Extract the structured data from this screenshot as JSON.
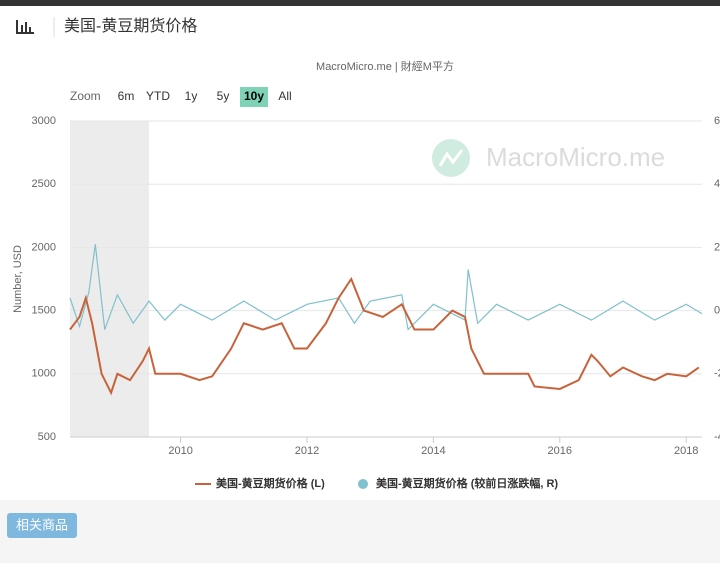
{
  "header": {
    "title": "美国-黄豆期货价格"
  },
  "button": "相关商品",
  "watermark": "MacroMicro.me",
  "chart_data": {
    "type": "line",
    "subtitle": "MacroMicro.me | 財經M平方",
    "zoom": {
      "label": "Zoom",
      "options": [
        "6m",
        "YTD",
        "1y",
        "5y",
        "10y",
        "All"
      ],
      "selected": 4
    },
    "y_label": "Number, USD",
    "xlim": [
      2008.25,
      2018.25
    ],
    "xticks": [
      2010,
      2012,
      2014,
      2016,
      2018
    ],
    "ylim": [
      500,
      3000
    ],
    "yticks": [
      500,
      1000,
      1500,
      2000,
      2500,
      3000
    ],
    "y2lim": [
      -4,
      6
    ],
    "y2ticks": [
      -4,
      -2,
      0,
      2,
      4,
      6
    ],
    "bands": [
      {
        "from": 2008.25,
        "to": 2009.5,
        "color": "#ececec"
      }
    ],
    "grid": true,
    "series": [
      {
        "name": "美国-黄豆期货价格 (L)",
        "color": "#c8623a",
        "axis": "y",
        "x": [
          2008.25,
          2008.4,
          2008.5,
          2008.6,
          2008.75,
          2008.9,
          2009.0,
          2009.2,
          2009.4,
          2009.5,
          2009.6,
          2009.8,
          2010.0,
          2010.3,
          2010.5,
          2010.8,
          2011.0,
          2011.3,
          2011.6,
          2011.8,
          2012.0,
          2012.3,
          2012.5,
          2012.7,
          2012.9,
          2013.2,
          2013.5,
          2013.7,
          2014.0,
          2014.3,
          2014.5,
          2014.6,
          2014.8,
          2015.0,
          2015.5,
          2015.6,
          2016.0,
          2016.3,
          2016.5,
          2016.6,
          2016.8,
          2017.0,
          2017.3,
          2017.5,
          2017.7,
          2018.0,
          2018.2
        ],
        "values": [
          1350,
          1450,
          1600,
          1400,
          1000,
          850,
          1000,
          950,
          1100,
          1200,
          1000,
          1000,
          1000,
          950,
          980,
          1200,
          1400,
          1350,
          1400,
          1200,
          1200,
          1400,
          1600,
          1750,
          1500,
          1450,
          1550,
          1350,
          1350,
          1500,
          1450,
          1200,
          1000,
          1000,
          1000,
          900,
          880,
          950,
          1150,
          1100,
          980,
          1050,
          980,
          950,
          1000,
          980,
          1050
        ]
      },
      {
        "name": "美国-黄豆期货价格 (较前日涨跌幅, R)",
        "color": "#7fc1cc",
        "axis": "y2",
        "x": [
          2008.25,
          2008.4,
          2008.55,
          2008.65,
          2008.8,
          2009.0,
          2009.25,
          2009.5,
          2009.75,
          2010.0,
          2010.5,
          2011.0,
          2011.5,
          2012.0,
          2012.5,
          2012.75,
          2013.0,
          2013.5,
          2013.6,
          2014.0,
          2014.5,
          2014.55,
          2014.7,
          2015.0,
          2015.5,
          2016.0,
          2016.5,
          2017.0,
          2017.5,
          2018.0,
          2018.25
        ],
        "values": [
          0.4,
          -0.5,
          0.6,
          2.1,
          -0.6,
          0.5,
          -0.4,
          0.3,
          -0.3,
          0.2,
          -0.3,
          0.3,
          -0.3,
          0.2,
          0.4,
          -0.4,
          0.3,
          0.5,
          -0.6,
          0.2,
          -0.3,
          1.3,
          -0.4,
          0.2,
          -0.3,
          0.2,
          -0.3,
          0.3,
          -0.3,
          0.2,
          -0.1
        ]
      }
    ]
  }
}
